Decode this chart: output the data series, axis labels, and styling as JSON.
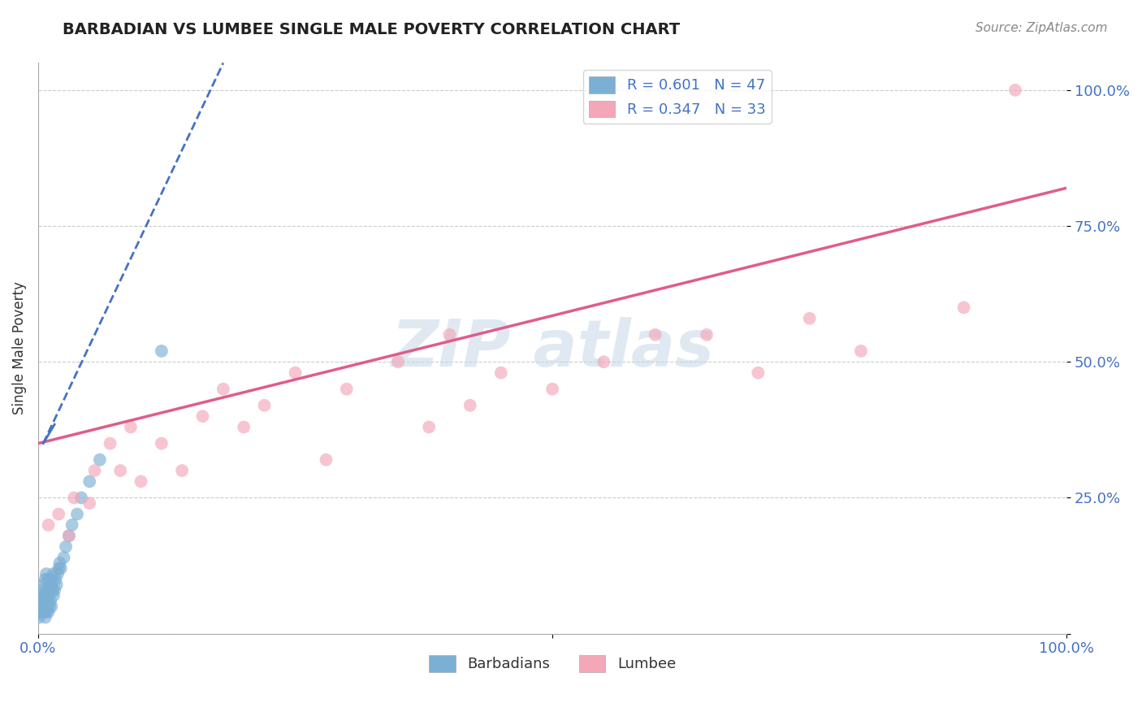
{
  "title": "BARBADIAN VS LUMBEE SINGLE MALE POVERTY CORRELATION CHART",
  "source": "Source: ZipAtlas.com",
  "ylabel": "Single Male Poverty",
  "barbadian_R": "0.601",
  "barbadian_N": "47",
  "lumbee_R": "0.347",
  "lumbee_N": "33",
  "barbadian_color": "#7BAFD4",
  "lumbee_color": "#F4A7B9",
  "barbadian_line_color": "#4472C4",
  "lumbee_line_color": "#E05C8A",
  "barbadian_x": [
    0.001,
    0.002,
    0.002,
    0.003,
    0.003,
    0.004,
    0.004,
    0.005,
    0.005,
    0.006,
    0.006,
    0.007,
    0.007,
    0.007,
    0.008,
    0.008,
    0.008,
    0.009,
    0.009,
    0.01,
    0.01,
    0.01,
    0.011,
    0.011,
    0.012,
    0.012,
    0.013,
    0.013,
    0.014,
    0.015,
    0.015,
    0.016,
    0.017,
    0.018,
    0.019,
    0.02,
    0.021,
    0.022,
    0.025,
    0.027,
    0.03,
    0.033,
    0.038,
    0.042,
    0.05,
    0.06,
    0.12
  ],
  "barbadian_y": [
    0.03,
    0.04,
    0.06,
    0.05,
    0.07,
    0.04,
    0.08,
    0.05,
    0.09,
    0.04,
    0.07,
    0.03,
    0.06,
    0.1,
    0.04,
    0.07,
    0.11,
    0.05,
    0.08,
    0.04,
    0.07,
    0.1,
    0.05,
    0.09,
    0.06,
    0.1,
    0.05,
    0.09,
    0.08,
    0.07,
    0.11,
    0.08,
    0.1,
    0.09,
    0.11,
    0.12,
    0.13,
    0.12,
    0.14,
    0.16,
    0.18,
    0.2,
    0.22,
    0.25,
    0.28,
    0.32,
    0.52
  ],
  "lumbee_x": [
    0.01,
    0.02,
    0.03,
    0.035,
    0.05,
    0.055,
    0.07,
    0.08,
    0.09,
    0.1,
    0.12,
    0.14,
    0.16,
    0.18,
    0.2,
    0.22,
    0.25,
    0.28,
    0.3,
    0.35,
    0.38,
    0.4,
    0.42,
    0.45,
    0.5,
    0.55,
    0.6,
    0.65,
    0.7,
    0.75,
    0.8,
    0.9,
    0.95
  ],
  "lumbee_y": [
    0.2,
    0.22,
    0.18,
    0.25,
    0.24,
    0.3,
    0.35,
    0.3,
    0.38,
    0.28,
    0.35,
    0.3,
    0.4,
    0.45,
    0.38,
    0.42,
    0.48,
    0.32,
    0.45,
    0.5,
    0.38,
    0.55,
    0.42,
    0.48,
    0.45,
    0.5,
    0.55,
    0.55,
    0.48,
    0.58,
    0.52,
    0.6,
    1.0
  ],
  "lumbee_line_x0": 0.0,
  "lumbee_line_y0": 0.35,
  "lumbee_line_x1": 1.0,
  "lumbee_line_y1": 0.82,
  "barbadian_line_x0": 0.005,
  "barbadian_line_y0": 0.35,
  "barbadian_line_x1": 0.18,
  "barbadian_line_y1": 1.05,
  "ytick_positions": [
    0.0,
    0.25,
    0.5,
    0.75,
    1.0
  ],
  "ytick_labels": [
    "",
    "25.0%",
    "50.0%",
    "75.0%",
    "100.0%"
  ],
  "xtick_positions": [
    0.0,
    0.5,
    1.0
  ],
  "xtick_labels": [
    "0.0%",
    "",
    "100.0%"
  ],
  "xlim": [
    0.0,
    1.0
  ],
  "ylim": [
    0.0,
    1.05
  ],
  "legend_text_color": "#4472C4",
  "tick_color": "#4472C4",
  "grid_color": "#CCCCCC",
  "title_fontsize": 14,
  "source_fontsize": 11,
  "tick_fontsize": 13,
  "legend_fontsize": 13,
  "ylabel_fontsize": 12
}
